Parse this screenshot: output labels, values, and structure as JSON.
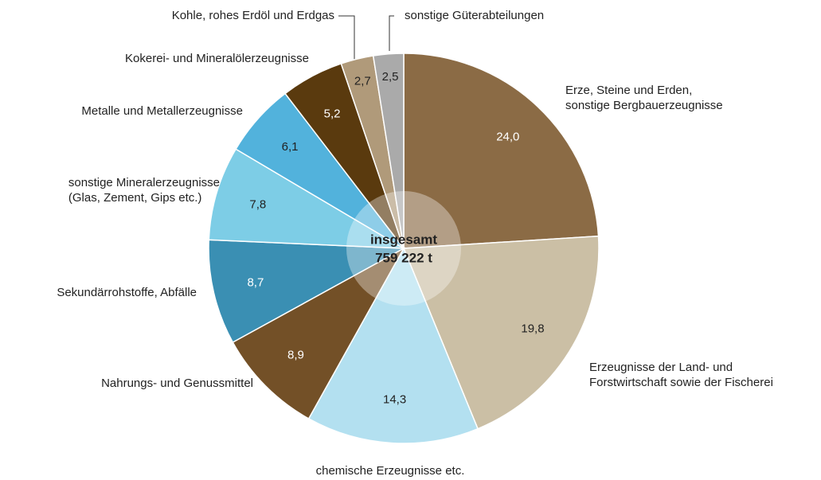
{
  "chart_data": {
    "type": "pie",
    "categories": [
      "Erze, Steine und Erden,\nsonstige Bergbauerzeugnisse",
      "Erzeugnisse der Land- und\nForstwirtschaft sowie der Fischerei",
      "chemische Erzeugnisse etc.",
      "Nahrungs- und Genussmittel",
      "Sekundärrohstoffe, Abfälle",
      "sonstige Mineralerzeugnisse\n(Glas, Zement, Gips etc.)",
      "Metalle und Metallerzeugnisse",
      "Kokerei- und Mineralölerzeugnisse",
      "Kohle, rohes Erdöl und Erdgas",
      "sonstige Güterabteilungen"
    ],
    "values": [
      24.0,
      19.8,
      14.3,
      8.9,
      8.7,
      7.8,
      6.1,
      5.2,
      2.7,
      2.5
    ],
    "value_labels": [
      "24,0",
      "19,8",
      "14,3",
      "8,9",
      "8,7",
      "7,8",
      "6,1",
      "5,2",
      "2,7",
      "2,5"
    ],
    "colors": [
      "#8b6b45",
      "#cbbfa5",
      "#b3e0f0",
      "#735027",
      "#3a8fb3",
      "#7dcde6",
      "#52b2dc",
      "#5a3a0e",
      "#b09a7a",
      "#aaaaaa"
    ],
    "center_text": [
      "insgesamt",
      "759 222 t"
    ]
  }
}
